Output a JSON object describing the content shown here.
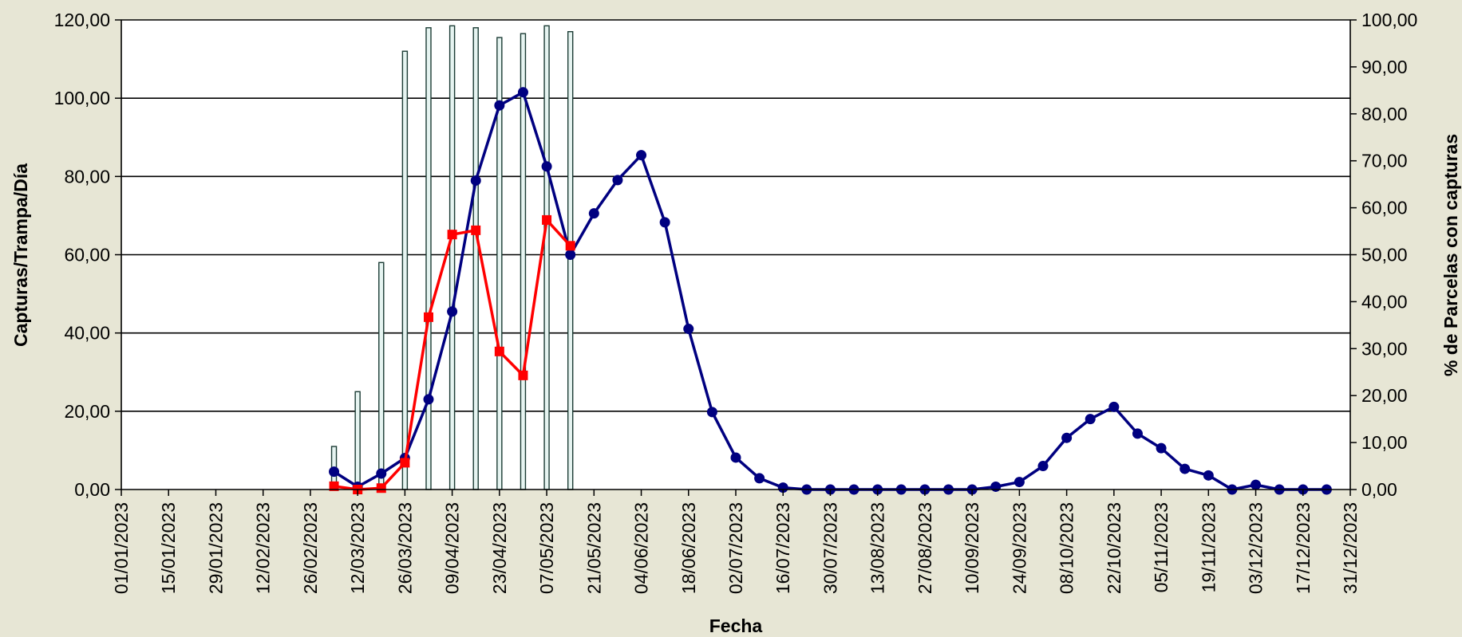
{
  "chart_data": {
    "type": "bar+line",
    "title": "",
    "xlabel": "Fecha",
    "ylabel_left": "Capturas/Trampa/Día",
    "ylabel_right": "% de Parcelas con capturas",
    "x_tick_labels": [
      "01/01/2023",
      "15/01/2023",
      "29/01/2023",
      "12/02/2023",
      "26/02/2023",
      "12/03/2023",
      "26/03/2023",
      "09/04/2023",
      "23/04/2023",
      "07/05/2023",
      "21/05/2023",
      "04/06/2023",
      "18/06/2023",
      "02/07/2023",
      "16/07/2023",
      "30/07/2023",
      "13/08/2023",
      "27/08/2023",
      "10/09/2023",
      "24/09/2023",
      "08/10/2023",
      "22/10/2023",
      "05/11/2023",
      "19/11/2023",
      "03/12/2023",
      "17/12/2023",
      "31/12/2023"
    ],
    "left_axis": {
      "ylim": [
        0,
        120
      ],
      "ticks": [
        "0,00",
        "20,00",
        "40,00",
        "60,00",
        "80,00",
        "100,00",
        "120,00"
      ]
    },
    "right_axis": {
      "ylim": [
        0,
        100
      ],
      "ticks": [
        "0,00",
        "10,00",
        "20,00",
        "30,00",
        "40,00",
        "50,00",
        "60,00",
        "70,00",
        "80,00",
        "90,00",
        "100,00"
      ]
    },
    "grid": true,
    "colors": {
      "background": "#E7E6D5",
      "plot": "#FFFFFF",
      "grid": "#000000",
      "bar_fill": "#E6F4F1",
      "bar_stroke": "#1B3B34",
      "series_blue": "#000080",
      "series_red": "#FF0000"
    },
    "bars": {
      "axis": "left",
      "points": [
        {
          "x": "05/03/2023",
          "y": 11
        },
        {
          "x": "12/03/2023",
          "y": 25
        },
        {
          "x": "19/03/2023",
          "y": 58
        },
        {
          "x": "26/03/2023",
          "y": 112
        },
        {
          "x": "02/04/2023",
          "y": 118
        },
        {
          "x": "09/04/2023",
          "y": 118.5
        },
        {
          "x": "16/04/2023",
          "y": 118
        },
        {
          "x": "23/04/2023",
          "y": 115.5
        },
        {
          "x": "30/04/2023",
          "y": 116.5
        },
        {
          "x": "07/05/2023",
          "y": 118.5
        },
        {
          "x": "14/05/2023",
          "y": 117
        }
      ]
    },
    "series": [
      {
        "axis": "right",
        "color": "#000080",
        "marker": "circle",
        "points": [
          {
            "x": "05/03/2023",
            "y": 3.8
          },
          {
            "x": "12/03/2023",
            "y": 0.6
          },
          {
            "x": "19/03/2023",
            "y": 3.4
          },
          {
            "x": "26/03/2023",
            "y": 6.7
          },
          {
            "x": "02/04/2023",
            "y": 19.2
          },
          {
            "x": "09/04/2023",
            "y": 37.9
          },
          {
            "x": "16/04/2023",
            "y": 65.8
          },
          {
            "x": "23/04/2023",
            "y": 81.8
          },
          {
            "x": "30/04/2023",
            "y": 84.6
          },
          {
            "x": "07/05/2023",
            "y": 68.8
          },
          {
            "x": "14/05/2023",
            "y": 50.0
          },
          {
            "x": "21/05/2023",
            "y": 58.8
          },
          {
            "x": "28/05/2023",
            "y": 65.9
          },
          {
            "x": "04/06/2023",
            "y": 71.2
          },
          {
            "x": "11/06/2023",
            "y": 56.9
          },
          {
            "x": "18/06/2023",
            "y": 34.2
          },
          {
            "x": "25/06/2023",
            "y": 16.5
          },
          {
            "x": "02/07/2023",
            "y": 6.8
          },
          {
            "x": "09/07/2023",
            "y": 2.4
          },
          {
            "x": "16/07/2023",
            "y": 0.4
          },
          {
            "x": "23/07/2023",
            "y": 0.0
          },
          {
            "x": "30/07/2023",
            "y": 0.0
          },
          {
            "x": "06/08/2023",
            "y": 0.0
          },
          {
            "x": "13/08/2023",
            "y": 0.0
          },
          {
            "x": "20/08/2023",
            "y": 0.0
          },
          {
            "x": "27/08/2023",
            "y": 0.0
          },
          {
            "x": "03/09/2023",
            "y": 0.0
          },
          {
            "x": "10/09/2023",
            "y": 0.0
          },
          {
            "x": "17/09/2023",
            "y": 0.6
          },
          {
            "x": "24/09/2023",
            "y": 1.6
          },
          {
            "x": "01/10/2023",
            "y": 5.0
          },
          {
            "x": "08/10/2023",
            "y": 11.0
          },
          {
            "x": "15/10/2023",
            "y": 15.0
          },
          {
            "x": "22/10/2023",
            "y": 17.6
          },
          {
            "x": "29/10/2023",
            "y": 11.9
          },
          {
            "x": "05/11/2023",
            "y": 8.8
          },
          {
            "x": "12/11/2023",
            "y": 4.4
          },
          {
            "x": "19/11/2023",
            "y": 3.0
          },
          {
            "x": "26/11/2023",
            "y": 0.0
          },
          {
            "x": "03/12/2023",
            "y": 1.0
          },
          {
            "x": "10/12/2023",
            "y": 0.0
          },
          {
            "x": "17/12/2023",
            "y": 0.0
          },
          {
            "x": "24/12/2023",
            "y": 0.0
          }
        ]
      },
      {
        "axis": "right",
        "color": "#FF0000",
        "marker": "square",
        "points": [
          {
            "x": "05/03/2023",
            "y": 0.7
          },
          {
            "x": "12/03/2023",
            "y": 0.0
          },
          {
            "x": "19/03/2023",
            "y": 0.3
          },
          {
            "x": "26/03/2023",
            "y": 5.7
          },
          {
            "x": "02/04/2023",
            "y": 36.7
          },
          {
            "x": "09/04/2023",
            "y": 54.3
          },
          {
            "x": "16/04/2023",
            "y": 55.2
          },
          {
            "x": "23/04/2023",
            "y": 29.4
          },
          {
            "x": "30/04/2023",
            "y": 24.3
          },
          {
            "x": "07/05/2023",
            "y": 57.4
          },
          {
            "x": "14/05/2023",
            "y": 51.9
          }
        ]
      }
    ]
  }
}
